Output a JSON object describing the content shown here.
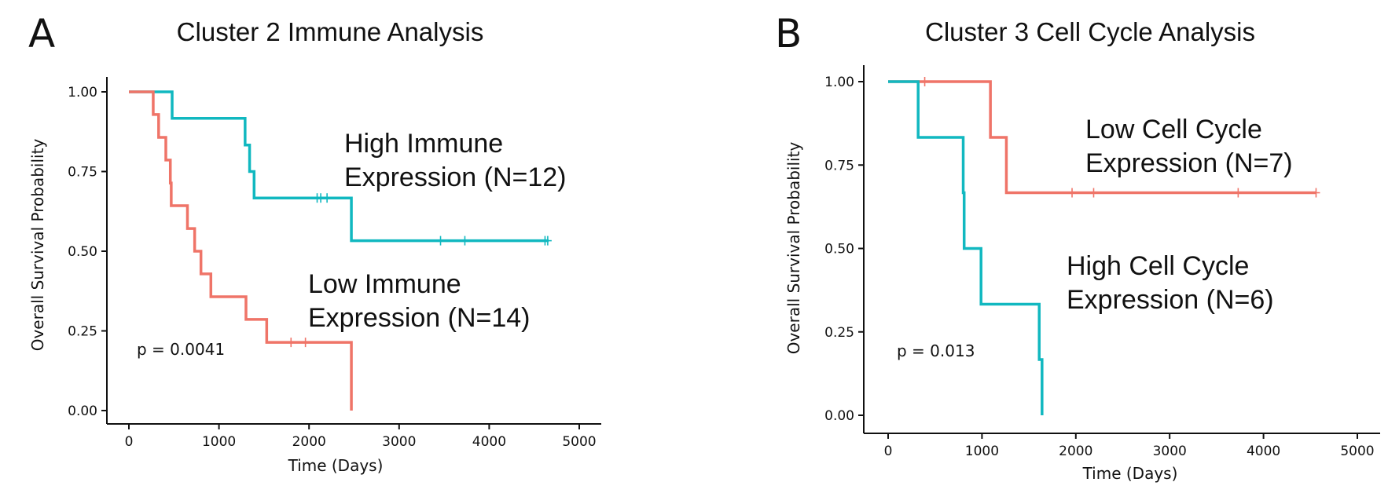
{
  "panels": [
    {
      "letter": "A",
      "title": "Cluster 2 Immune Analysis",
      "pvalue": "p = 0.0041",
      "annotations": [
        {
          "lines": [
            "High Immune",
            "Expression (N=12)"
          ]
        },
        {
          "lines": [
            "Low Immune",
            "Expression (N=14)"
          ]
        }
      ]
    },
    {
      "letter": "B",
      "title": "Cluster 3  Cell Cycle Analysis",
      "pvalue": "p = 0.013",
      "annotations": [
        {
          "lines": [
            "Low Cell Cycle",
            "Expression (N=7)"
          ]
        },
        {
          "lines": [
            "High Cell Cycle",
            "Expression (N=6)"
          ]
        }
      ]
    }
  ],
  "colors": {
    "teal": "#11b8c0",
    "salmon": "#ef7468"
  },
  "chart_data": [
    {
      "type": "line",
      "title": "Cluster 2 Immune Analysis",
      "xlabel": "Time (Days)",
      "ylabel": "Overall Survival Probability",
      "xlim": [
        0,
        5000
      ],
      "ylim": [
        0,
        1
      ],
      "xticks": [
        "0",
        "1000",
        "2000",
        "3000",
        "4000",
        "5000"
      ],
      "yticks": [
        "0.00",
        "0.25",
        "0.50",
        "0.75",
        "1.00"
      ],
      "grid": false,
      "series": [
        {
          "name": "High Immune Expression (N=12)",
          "color": "teal",
          "steps": [
            [
              0,
              1.0
            ],
            [
              480,
              0.917
            ],
            [
              1290,
              0.833
            ],
            [
              1340,
              0.75
            ],
            [
              1390,
              0.667
            ],
            [
              2470,
              0.533
            ]
          ],
          "end_x": 4660,
          "censors": [
            [
              2090,
              0.667
            ],
            [
              2130,
              0.667
            ],
            [
              2200,
              0.667
            ],
            [
              3460,
              0.533
            ],
            [
              3730,
              0.533
            ],
            [
              4620,
              0.533
            ],
            [
              4650,
              0.533
            ]
          ]
        },
        {
          "name": "Low Immune Expression (N=14)",
          "color": "salmon",
          "steps": [
            [
              0,
              1.0
            ],
            [
              270,
              0.929
            ],
            [
              330,
              0.857
            ],
            [
              410,
              0.786
            ],
            [
              460,
              0.714
            ],
            [
              470,
              0.643
            ],
            [
              650,
              0.571
            ],
            [
              730,
              0.5
            ],
            [
              800,
              0.429
            ],
            [
              910,
              0.357
            ],
            [
              1300,
              0.286
            ],
            [
              1530,
              0.214
            ],
            [
              2470,
              0.0
            ]
          ],
          "end_x": 2470,
          "censors": [
            [
              1800,
              0.214
            ],
            [
              1960,
              0.214
            ]
          ]
        }
      ]
    },
    {
      "type": "line",
      "title": "Cluster 3  Cell Cycle Analysis",
      "xlabel": "Time (Days)",
      "ylabel": "Overall Survival Probability",
      "xlim": [
        0,
        5000
      ],
      "ylim": [
        0,
        1
      ],
      "xticks": [
        "0",
        "1000",
        "2000",
        "3000",
        "4000",
        "5000"
      ],
      "yticks": [
        "0.00",
        "0.25",
        "0.50",
        "0.75",
        "1.00"
      ],
      "grid": false,
      "series": [
        {
          "name": "Low Cell Cycle Expression (N=7)",
          "color": "salmon",
          "steps": [
            [
              0,
              1.0
            ],
            [
              1090,
              0.833
            ],
            [
              1260,
              0.667
            ]
          ],
          "end_x": 4560,
          "censors": [
            [
              390,
              1.0
            ],
            [
              1960,
              0.667
            ],
            [
              2190,
              0.667
            ],
            [
              3730,
              0.667
            ],
            [
              4560,
              0.667
            ]
          ]
        },
        {
          "name": "High Cell Cycle Expression (N=6)",
          "color": "teal",
          "steps": [
            [
              0,
              1.0
            ],
            [
              320,
              0.833
            ],
            [
              800,
              0.667
            ],
            [
              810,
              0.5
            ],
            [
              990,
              0.333
            ],
            [
              1610,
              0.167
            ],
            [
              1640,
              0.0
            ]
          ],
          "end_x": 1640,
          "censors": []
        }
      ]
    }
  ]
}
